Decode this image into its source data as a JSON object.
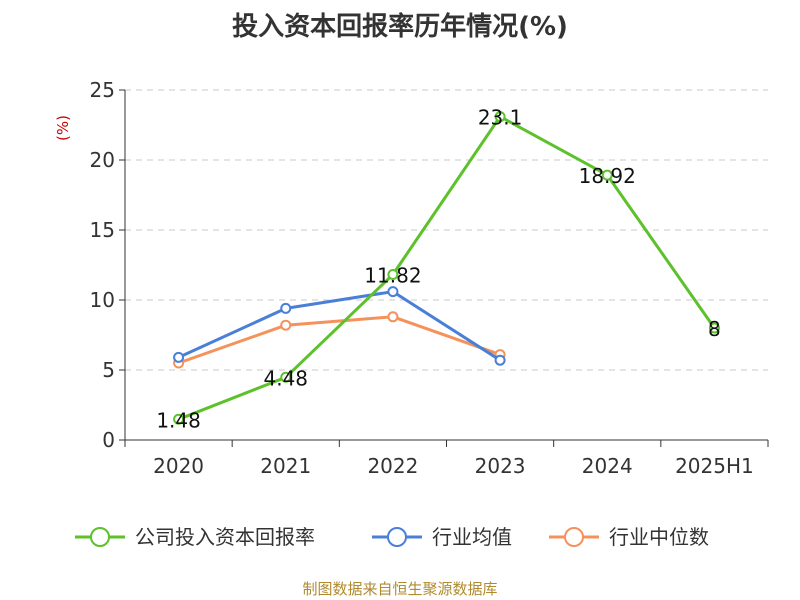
{
  "chart_data": {
    "type": "line",
    "title": "投入资本回报率历年情况(%)",
    "ylabel": "(%)",
    "categories": [
      "2020",
      "2021",
      "2022",
      "2023",
      "2024",
      "2025H1"
    ],
    "ylim": [
      0,
      25
    ],
    "yticks": [
      0,
      5,
      10,
      15,
      20,
      25
    ],
    "grid": true,
    "legend_position": "bottom",
    "series": [
      {
        "name": "公司投入资本回报率",
        "color": "#5cc12a",
        "values": [
          1.48,
          4.48,
          11.82,
          23.1,
          18.92,
          8
        ],
        "labels": [
          "1.48",
          "4.48",
          "11.82",
          "23.1",
          "18.92",
          "8"
        ]
      },
      {
        "name": "行业均值",
        "color": "#4a7fd8",
        "values": [
          5.9,
          9.4,
          10.6,
          5.7,
          null,
          null
        ]
      },
      {
        "name": "行业中位数",
        "color": "#f5915a",
        "values": [
          5.5,
          8.2,
          8.8,
          6.1,
          null,
          null
        ]
      }
    ]
  },
  "source": "制图数据来自恒生聚源数据库"
}
